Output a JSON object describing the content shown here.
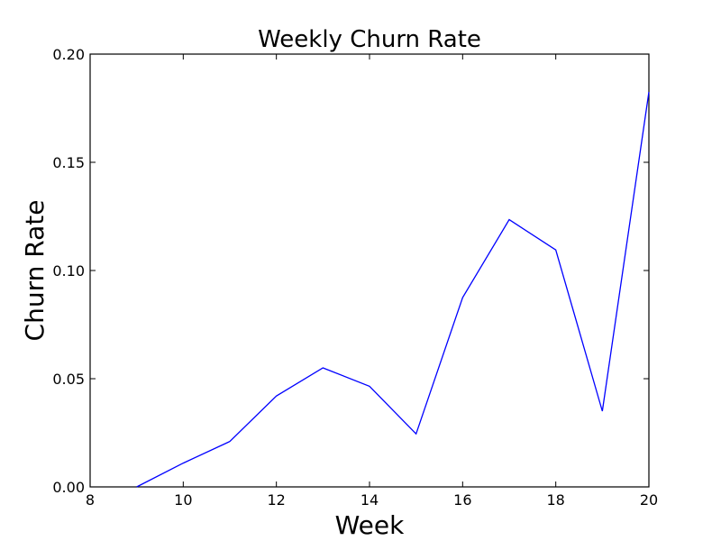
{
  "chart_data": {
    "type": "line",
    "title": "Weekly Churn Rate",
    "xlabel": "Week",
    "ylabel": "Churn Rate",
    "xlim": [
      8,
      20
    ],
    "ylim": [
      0,
      0.2
    ],
    "xticks": [
      "8",
      "10",
      "12",
      "14",
      "16",
      "18",
      "20"
    ],
    "yticks": [
      "0.00",
      "0.05",
      "0.10",
      "0.15",
      "0.20"
    ],
    "grid": false,
    "legend": "none",
    "color": "#0000ff",
    "series": [
      {
        "x": [
          9,
          10,
          11,
          12,
          13,
          14,
          15,
          16,
          17,
          18,
          19,
          20
        ],
        "y": [
          0.0,
          0.011,
          0.021,
          0.042,
          0.055,
          0.0465,
          0.0245,
          0.0875,
          0.1235,
          0.1095,
          0.035,
          0.1825
        ]
      }
    ]
  }
}
